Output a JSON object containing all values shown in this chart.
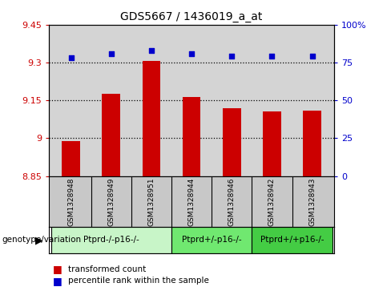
{
  "title": "GDS5667 / 1436019_a_at",
  "samples": [
    "GSM1328948",
    "GSM1328949",
    "GSM1328951",
    "GSM1328944",
    "GSM1328946",
    "GSM1328942",
    "GSM1328943"
  ],
  "bar_values": [
    8.99,
    9.175,
    9.305,
    9.162,
    9.118,
    9.105,
    9.108
  ],
  "percentile_values": [
    78,
    81,
    83,
    81,
    79,
    79,
    79
  ],
  "bar_color": "#cc0000",
  "dot_color": "#0000cc",
  "ylim_left": [
    8.85,
    9.45
  ],
  "ylim_right": [
    0,
    100
  ],
  "yticks_left": [
    8.85,
    9.0,
    9.15,
    9.3,
    9.45
  ],
  "ytick_labels_left": [
    "8.85",
    "9",
    "9.15",
    "9.3",
    "9.45"
  ],
  "yticks_right": [
    0,
    25,
    50,
    75,
    100
  ],
  "ytick_labels_right": [
    "0",
    "25",
    "50",
    "75",
    "100%"
  ],
  "hlines": [
    9.0,
    9.15,
    9.3
  ],
  "groups": [
    {
      "label": "Ptprd-/-p16-/-",
      "sample_indices": [
        0,
        1,
        2
      ],
      "color": "#c8f5c8"
    },
    {
      "label": "Ptprd+/-p16-/-",
      "sample_indices": [
        3,
        4
      ],
      "color": "#70e870"
    },
    {
      "label": "Ptprd+/+p16-/-",
      "sample_indices": [
        5,
        6
      ],
      "color": "#44cc44"
    }
  ],
  "genotype_label": "genotype/variation",
  "legend_label_1": "transformed count",
  "legend_label_2": "percentile rank within the sample",
  "bar_width": 0.45,
  "dot_size": 25,
  "background_color": "#ffffff",
  "plot_bg_color": "#d4d4d4",
  "sample_bg_color": "#c8c8c8"
}
